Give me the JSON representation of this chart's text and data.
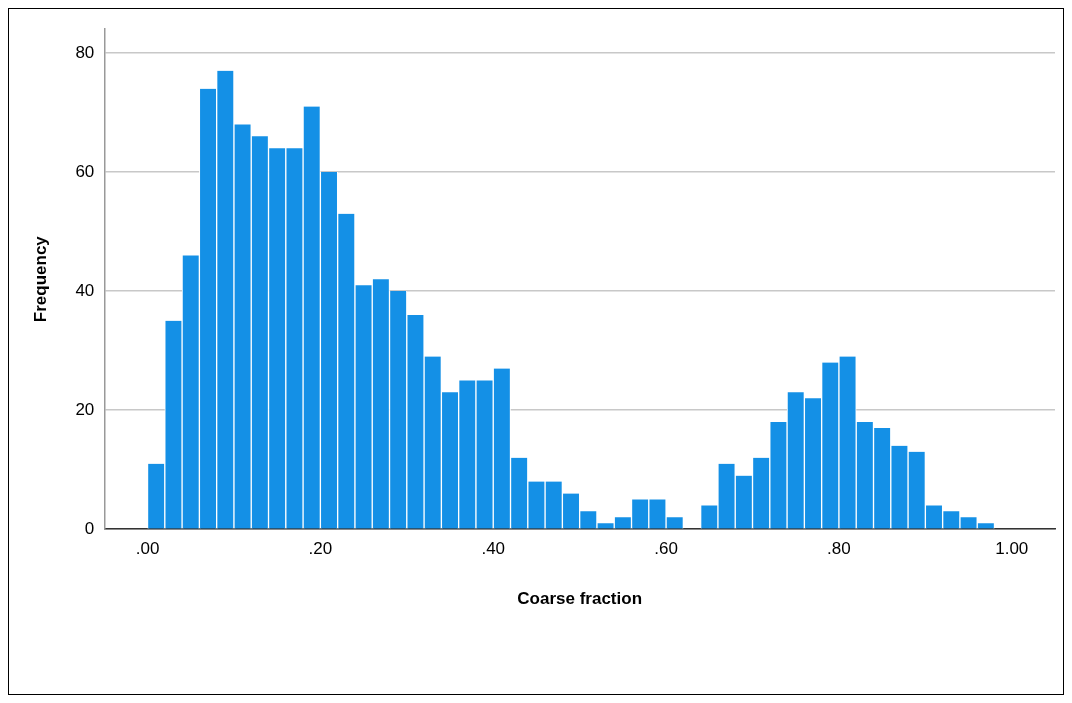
{
  "chart_data": {
    "type": "histogram",
    "xlabel": "Coarse fraction",
    "ylabel": "Frequency",
    "bins": [
      0,
      0.02,
      0.04,
      0.06,
      0.08,
      0.1,
      0.12,
      0.14,
      0.16,
      0.18,
      0.2,
      0.22,
      0.24,
      0.26,
      0.28,
      0.3,
      0.32,
      0.34,
      0.36,
      0.38,
      0.4,
      0.42,
      0.44,
      0.46,
      0.48,
      0.5,
      0.52,
      0.54,
      0.56,
      0.58,
      0.6,
      0.62,
      0.64,
      0.66,
      0.68,
      0.7,
      0.72,
      0.74,
      0.76,
      0.78,
      0.8,
      0.82,
      0.84,
      0.86,
      0.88,
      0.9,
      0.92,
      0.94,
      0.96,
      0.98
    ],
    "values": [
      11,
      35,
      46,
      74,
      77,
      68,
      66,
      64,
      64,
      71,
      60,
      53,
      41,
      42,
      40,
      36,
      29,
      23,
      25,
      25,
      27,
      12,
      8,
      8,
      6,
      3,
      1,
      2,
      5,
      5,
      2,
      0,
      4,
      11,
      9,
      12,
      18,
      23,
      22,
      28,
      29,
      18,
      17,
      14,
      13,
      4,
      3,
      2,
      1
    ],
    "color": "#1490e6",
    "xlim": [
      -0.05,
      1.05
    ],
    "xticks": [
      {
        "value": 0,
        "label": ".00"
      },
      {
        "value": 0.2,
        "label": ".20"
      },
      {
        "value": 0.4,
        "label": ".40"
      },
      {
        "value": 0.6,
        "label": ".60"
      },
      {
        "value": 0.8,
        "label": ".80"
      },
      {
        "value": 1,
        "label": "1.00"
      }
    ],
    "ylim": [
      0,
      84
    ],
    "yticks": [
      0,
      20,
      40,
      60,
      80
    ],
    "grid": "y"
  }
}
